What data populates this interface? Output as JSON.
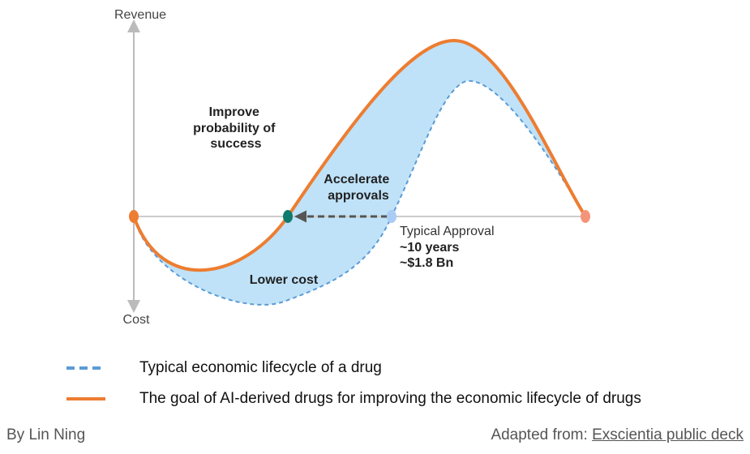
{
  "axes": {
    "y_top_label": "Revenue",
    "y_bottom_label": "Cost"
  },
  "annotations": {
    "improve_lines": [
      "Improve",
      "probability of",
      "success"
    ],
    "accelerate_lines": [
      "Accelerate",
      "approvals"
    ],
    "lower_cost": "Lower cost",
    "typical_approval": "Typical Approval",
    "years": "~10 years",
    "cost_bn": "~$1.8 Bn"
  },
  "legend": {
    "typical": "Typical economic lifecycle of a drug",
    "goal": "The goal of AI-derived drugs for improving the economic lifecycle of drugs"
  },
  "footer": {
    "author": "By Lin Ning",
    "source_prefix": "Adapted from: ",
    "source_link": "Exscientia public deck"
  },
  "colors": {
    "typical_curve": "#5b9bd5",
    "goal_curve": "#ed7d31",
    "shaded_area": "#bfe2f8",
    "start_point": "#ed7d31",
    "goal_breakeven_point": "#0f7b6c",
    "typical_breakeven_point": "#a9cdf5",
    "end_point": "#f4957a",
    "arrow": "#555555"
  }
}
